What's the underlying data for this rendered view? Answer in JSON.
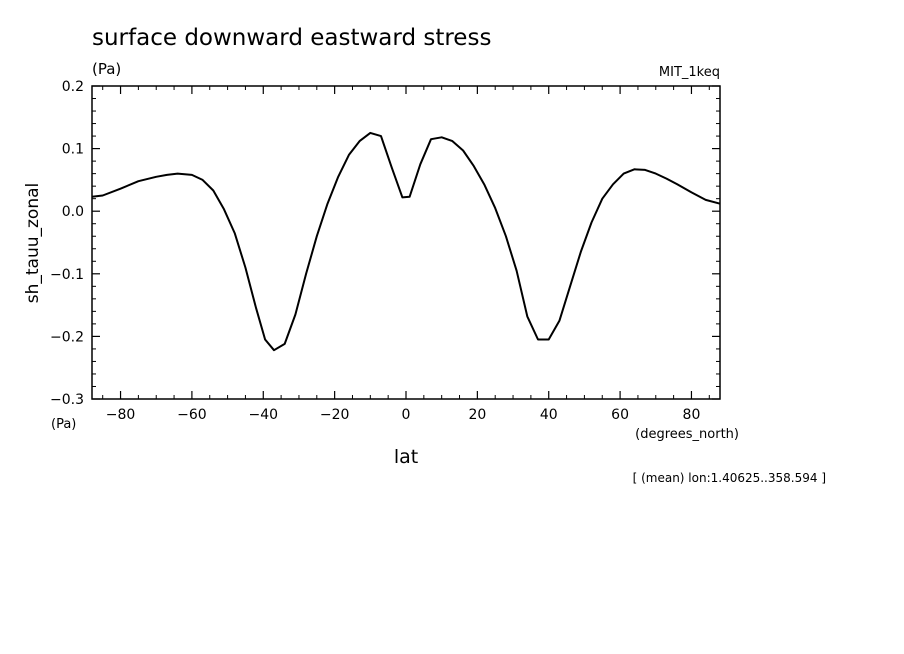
{
  "chart_data": {
    "type": "line",
    "title": "surface downward eastward stress",
    "units": "(Pa)",
    "dataset": "MIT_1keq",
    "ylabel": "sh_tauu_zonal",
    "yunits": "(Pa)",
    "xlabel": "lat",
    "xunits": "(degrees_north)",
    "footnote": "[ (mean) lon:1.40625..358.594 ]",
    "xlim": [
      -88,
      88
    ],
    "ylim": [
      -0.3,
      0.2
    ],
    "grid": false,
    "xticks": [
      -80,
      -60,
      -40,
      -20,
      0,
      20,
      40,
      60,
      80
    ],
    "xtick_labels": [
      "−80",
      "−60",
      "−40",
      "−20",
      "0",
      "20",
      "40",
      "60",
      "80"
    ],
    "yticks": [
      0.2,
      0.1,
      0.0,
      -0.1,
      -0.2,
      -0.3
    ],
    "ytick_labels": [
      "0.2",
      "0.1",
      "0.0",
      "−0.1",
      "−0.2",
      "−0.3"
    ],
    "series": [
      {
        "x": [
          -88,
          -85,
          -80,
          -75,
          -70,
          -67,
          -64,
          -60,
          -57,
          -54,
          -51,
          -48,
          -45,
          -42,
          -39.5,
          -37,
          -34,
          -31,
          -28,
          -25,
          -22,
          -19,
          -16,
          -13,
          -10,
          -7,
          -4,
          -1,
          1,
          4,
          7,
          10,
          13,
          16,
          19,
          22,
          25,
          28,
          31,
          34,
          37,
          40,
          43,
          46,
          49,
          52,
          55,
          58,
          61,
          64,
          67,
          70,
          73,
          76,
          80,
          84,
          88
        ],
        "y": [
          0.023,
          0.025,
          0.036,
          0.048,
          0.055,
          0.058,
          0.06,
          0.058,
          0.05,
          0.033,
          0.003,
          -0.035,
          -0.09,
          -0.155,
          -0.205,
          -0.222,
          -0.212,
          -0.165,
          -0.1,
          -0.04,
          0.012,
          0.055,
          0.09,
          0.112,
          0.125,
          0.12,
          0.07,
          0.022,
          0.023,
          0.075,
          0.115,
          0.118,
          0.112,
          0.097,
          0.072,
          0.042,
          0.005,
          -0.04,
          -0.095,
          -0.168,
          -0.205,
          -0.205,
          -0.175,
          -0.12,
          -0.065,
          -0.018,
          0.02,
          0.043,
          0.06,
          0.067,
          0.066,
          0.06,
          0.052,
          0.043,
          0.03,
          0.018,
          0.012
        ]
      }
    ]
  }
}
